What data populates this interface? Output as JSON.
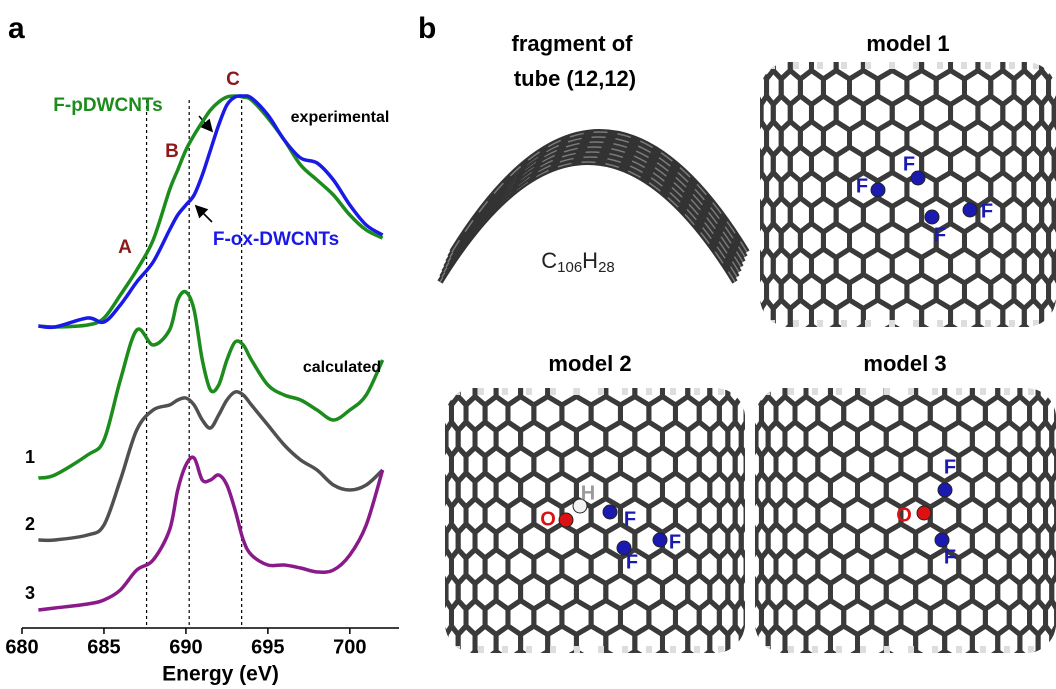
{
  "chart_data": {
    "type": "line",
    "xlabel": "Energy (eV)",
    "xlim": [
      680,
      703
    ],
    "xticks": [
      680,
      685,
      690,
      695,
      700
    ],
    "ylim": [
      0,
      600
    ],
    "x": [
      681,
      682,
      684,
      685,
      686,
      687,
      688,
      689,
      689.5,
      690,
      690.5,
      691,
      691.5,
      692,
      692.5,
      693,
      693.5,
      694,
      695,
      696,
      697,
      698,
      699,
      700,
      701,
      702
    ],
    "series": [
      {
        "name": "F-pDWCNTs",
        "color": "#1c8c1c",
        "values": [
          302,
          301,
          303,
          310,
          333,
          358,
          388,
          438,
          458,
          478,
          493,
          506,
          518,
          526,
          531,
          532,
          531,
          528,
          510,
          488,
          463,
          448,
          433,
          413,
          398,
          390
        ]
      },
      {
        "name": "F-ox-DWCNTs",
        "color": "#1a1ae6",
        "values": [
          302,
          301,
          310,
          306,
          323,
          346,
          366,
          398,
          413,
          423,
          433,
          453,
          478,
          503,
          523,
          531,
          532,
          530,
          513,
          488,
          470,
          465,
          448,
          423,
          403,
          393
        ]
      },
      {
        "name": "1",
        "color": "#1c8c1c",
        "values": [
          150,
          153,
          173,
          188,
          248,
          298,
          283,
          298,
          328,
          336,
          318,
          268,
          238,
          243,
          268,
          286,
          283,
          268,
          243,
          233,
          228,
          218,
          208,
          218,
          233,
          268
        ]
      },
      {
        "name": "2",
        "color": "#505050",
        "values": [
          88,
          88,
          93,
          103,
          148,
          198,
          218,
          223,
          228,
          230,
          223,
          208,
          200,
          213,
          228,
          236,
          233,
          223,
          203,
          183,
          168,
          158,
          143,
          138,
          143,
          158
        ]
      },
      {
        "name": "3",
        "color": "#8a1a8a",
        "values": [
          18,
          20,
          24,
          28,
          38,
          58,
          68,
          98,
          138,
          163,
          170,
          148,
          148,
          153,
          143,
          118,
          88,
          73,
          63,
          63,
          60,
          56,
          58,
          73,
          103,
          158
        ]
      }
    ],
    "reference_lines": [
      687.6,
      690.2,
      693.4
    ],
    "annotations": [
      "A",
      "B",
      "C",
      "experimental",
      "calculated"
    ]
  },
  "panel_labels": [
    "a",
    "b"
  ],
  "fragment": {
    "title_lines": [
      "fragment of",
      "tube (12,12)"
    ],
    "formula": [
      "C",
      "106",
      "H",
      "28"
    ]
  },
  "models": [
    {
      "title": "model 1",
      "atoms": [
        "F",
        "F",
        "F",
        "F"
      ]
    },
    {
      "title": "model 2",
      "atoms": [
        "O",
        "H",
        "F",
        "F",
        "F"
      ]
    },
    {
      "title": "model 3",
      "atoms": [
        "F",
        "O",
        "F"
      ]
    }
  ]
}
